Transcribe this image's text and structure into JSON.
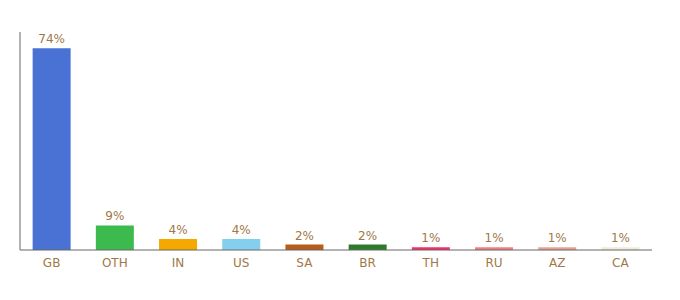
{
  "chart_data": {
    "type": "bar",
    "categories": [
      "GB",
      "OTH",
      "IN",
      "US",
      "SA",
      "BR",
      "TH",
      "RU",
      "AZ",
      "CA"
    ],
    "values": [
      74,
      9,
      4,
      4,
      2,
      2,
      1,
      1,
      1,
      1
    ],
    "value_labels": [
      "74%",
      "9%",
      "4%",
      "4%",
      "2%",
      "2%",
      "1%",
      "1%",
      "1%",
      "1%"
    ],
    "colors": [
      "#4a72d4",
      "#3dba4e",
      "#f5a800",
      "#85cfee",
      "#b85c1a",
      "#2d7a2d",
      "#f0306a",
      "#f08080",
      "#e8a090",
      "#f0ead8"
    ],
    "ylim": [
      0,
      80
    ],
    "data_labels": true,
    "tick_labels": "x",
    "grid": false
  }
}
